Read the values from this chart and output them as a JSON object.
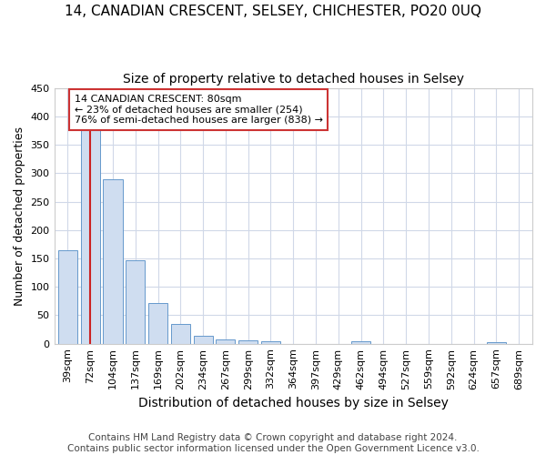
{
  "title": "14, CANADIAN CRESCENT, SELSEY, CHICHESTER, PO20 0UQ",
  "subtitle": "Size of property relative to detached houses in Selsey",
  "xlabel": "Distribution of detached houses by size in Selsey",
  "ylabel": "Number of detached properties",
  "footnote": "Contains HM Land Registry data © Crown copyright and database right 2024.\nContains public sector information licensed under the Open Government Licence v3.0.",
  "bar_labels": [
    "39sqm",
    "72sqm",
    "104sqm",
    "137sqm",
    "169sqm",
    "202sqm",
    "234sqm",
    "267sqm",
    "299sqm",
    "332sqm",
    "364sqm",
    "397sqm",
    "429sqm",
    "462sqm",
    "494sqm",
    "527sqm",
    "559sqm",
    "592sqm",
    "624sqm",
    "657sqm",
    "689sqm"
  ],
  "bar_values": [
    165,
    375,
    290,
    147,
    71,
    34,
    14,
    7,
    6,
    4,
    0,
    0,
    0,
    4,
    0,
    0,
    0,
    0,
    0,
    3,
    0
  ],
  "bar_color": "#cfddf0",
  "bar_edge_color": "#6699cc",
  "vline_x": 1,
  "vline_color": "#cc2222",
  "annotation_text": "14 CANADIAN CRESCENT: 80sqm\n← 23% of detached houses are smaller (254)\n76% of semi-detached houses are larger (838) →",
  "annotation_box_color": "#ffffff",
  "annotation_box_edge_color": "#cc3333",
  "ylim": [
    0,
    450
  ],
  "yticks": [
    0,
    50,
    100,
    150,
    200,
    250,
    300,
    350,
    400,
    450
  ],
  "bg_color": "#ffffff",
  "plot_bg_color": "#ffffff",
  "grid_color": "#d0d8e8",
  "title_fontsize": 11,
  "subtitle_fontsize": 10,
  "xlabel_fontsize": 10,
  "ylabel_fontsize": 9,
  "tick_fontsize": 8,
  "footnote_fontsize": 7.5
}
